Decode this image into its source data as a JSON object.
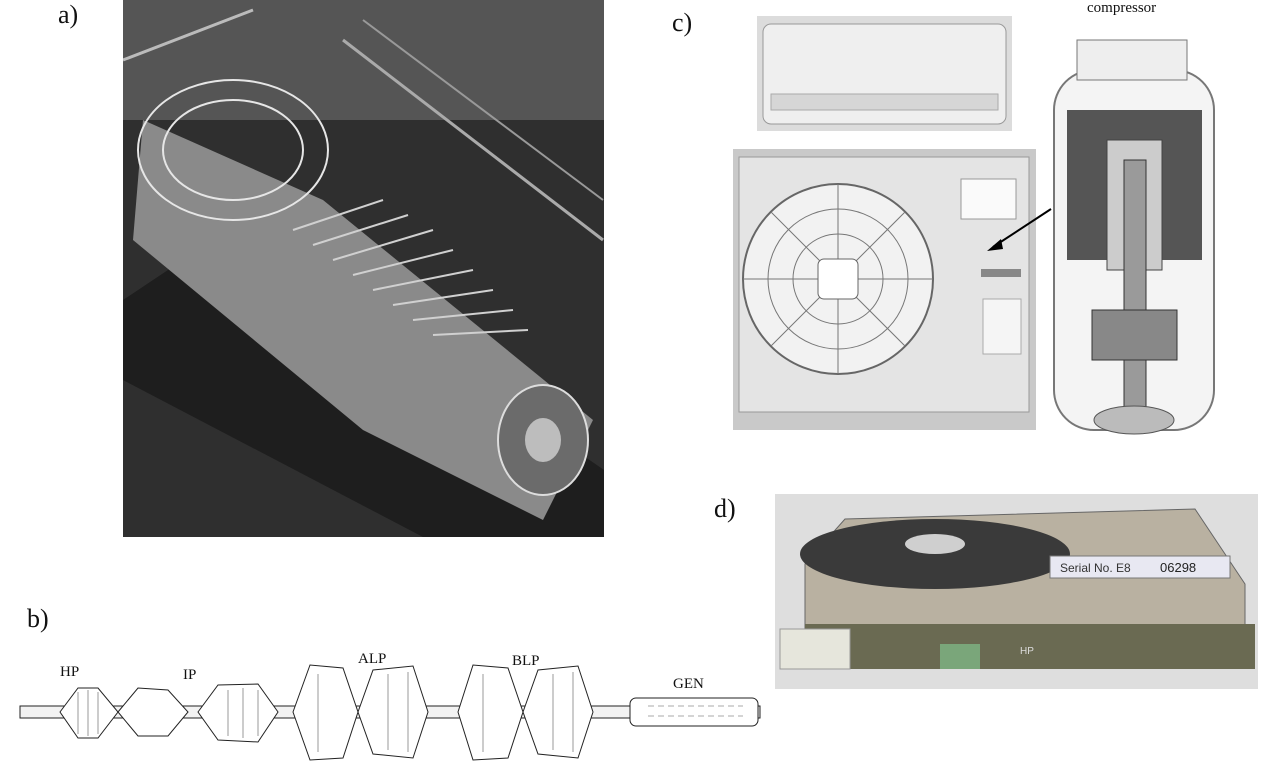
{
  "labels": {
    "a": "a)",
    "b": "b)",
    "c": "c)",
    "d": "d)"
  },
  "panel_c": {
    "caption": "compressor"
  },
  "panel_b": {
    "sections": [
      "HP",
      "IP",
      "ALP",
      "BLP",
      "GEN"
    ]
  },
  "panel_d": {
    "serial_label": "Serial No. E8",
    "serial_number": "06298",
    "brand": "HP"
  }
}
